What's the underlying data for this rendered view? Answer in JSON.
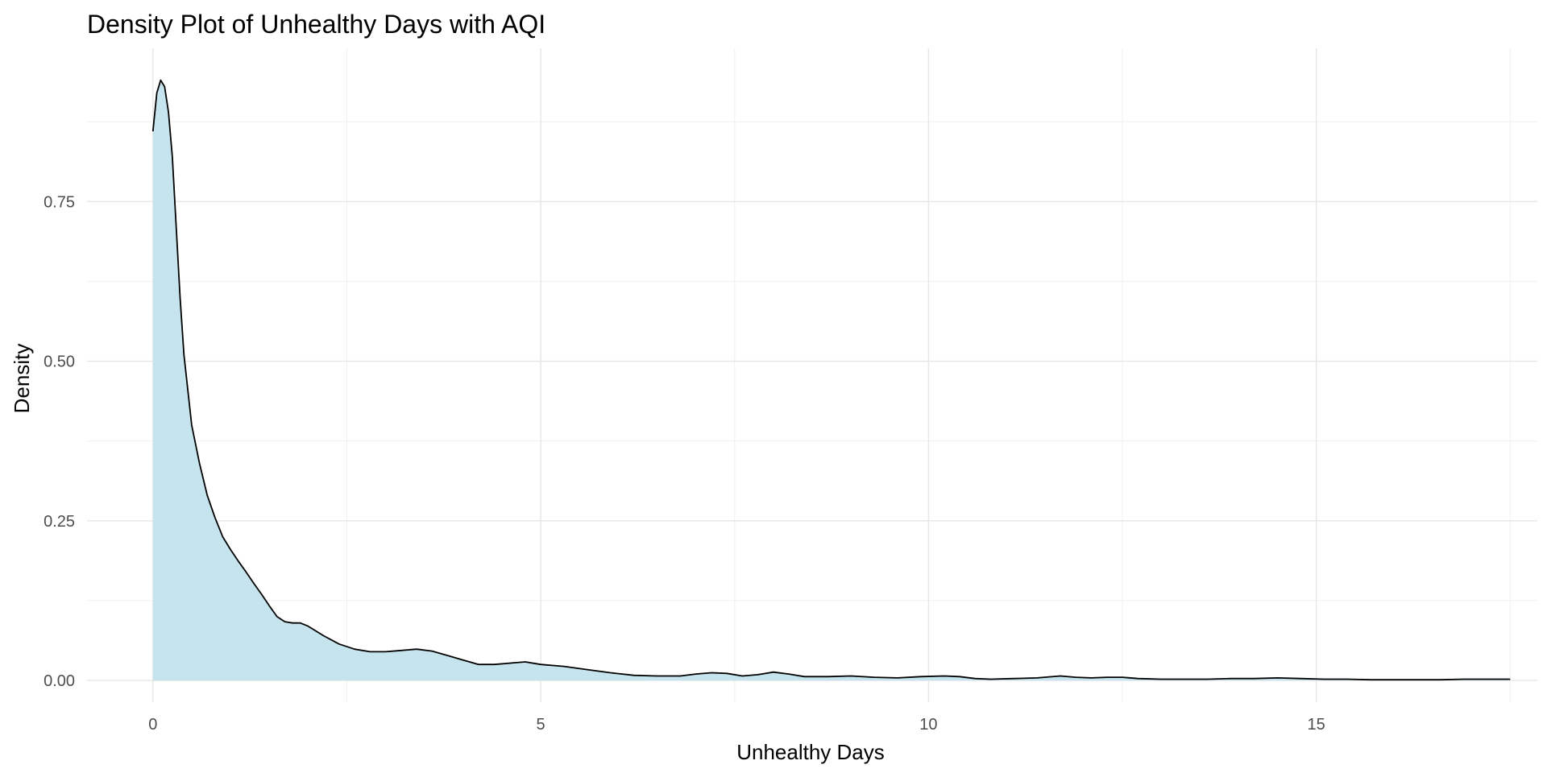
{
  "chart_data": {
    "type": "area",
    "title": "Density Plot of Unhealthy Days with AQI",
    "xlabel": "Unhealthy Days",
    "ylabel": "Density",
    "xlim": [
      -0.85,
      17.85
    ],
    "ylim": [
      -0.034,
      0.99
    ],
    "x_ticks": [
      0,
      5,
      10,
      15
    ],
    "x_tick_labels": [
      "0",
      "5",
      "10",
      "15"
    ],
    "x_minor_ticks": [
      2.5,
      7.5,
      12.5,
      17.5
    ],
    "y_ticks": [
      0,
      0.25,
      0.5,
      0.75
    ],
    "y_tick_labels": [
      "0.00",
      "0.25",
      "0.50",
      "0.75"
    ],
    "y_minor_ticks": [
      0.125,
      0.375,
      0.625,
      0.875
    ],
    "grid": true,
    "legend": "none",
    "fill_color": "#c6e4ed",
    "line_color": "#000000",
    "series": [
      {
        "x": [
          0,
          0.05,
          0.1,
          0.15,
          0.2,
          0.25,
          0.3,
          0.35,
          0.4,
          0.5,
          0.6,
          0.7,
          0.8,
          0.9,
          1.0,
          1.1,
          1.2,
          1.3,
          1.4,
          1.5,
          1.6,
          1.7,
          1.8,
          1.9,
          2.0,
          2.2,
          2.4,
          2.6,
          2.8,
          3.0,
          3.2,
          3.4,
          3.6,
          3.8,
          4.0,
          4.2,
          4.4,
          4.6,
          4.8,
          5.0,
          5.3,
          5.6,
          5.9,
          6.2,
          6.5,
          6.8,
          7.0,
          7.2,
          7.4,
          7.6,
          7.8,
          8.0,
          8.2,
          8.4,
          8.7,
          9.0,
          9.3,
          9.6,
          9.9,
          10.2,
          10.4,
          10.6,
          10.8,
          11.1,
          11.4,
          11.7,
          11.9,
          12.1,
          12.3,
          12.5,
          12.7,
          13.0,
          13.3,
          13.6,
          13.9,
          14.2,
          14.5,
          14.8,
          15.1,
          15.4,
          15.7,
          16.0,
          16.3,
          16.6,
          16.9,
          17.2,
          17.5
        ],
        "y": [
          0.86,
          0.92,
          0.94,
          0.93,
          0.89,
          0.82,
          0.71,
          0.6,
          0.51,
          0.4,
          0.34,
          0.29,
          0.255,
          0.225,
          0.205,
          0.187,
          0.17,
          0.152,
          0.135,
          0.117,
          0.1,
          0.092,
          0.09,
          0.09,
          0.085,
          0.07,
          0.057,
          0.049,
          0.045,
          0.045,
          0.047,
          0.049,
          0.046,
          0.039,
          0.032,
          0.025,
          0.025,
          0.027,
          0.029,
          0.025,
          0.022,
          0.017,
          0.012,
          0.008,
          0.007,
          0.007,
          0.01,
          0.012,
          0.011,
          0.007,
          0.009,
          0.013,
          0.01,
          0.006,
          0.006,
          0.007,
          0.005,
          0.004,
          0.006,
          0.007,
          0.006,
          0.003,
          0.002,
          0.003,
          0.004,
          0.007,
          0.005,
          0.004,
          0.005,
          0.005,
          0.003,
          0.002,
          0.002,
          0.002,
          0.003,
          0.003,
          0.004,
          0.003,
          0.002,
          0.002,
          0.001,
          0.001,
          0.001,
          0.001,
          0.002,
          0.002,
          0.002
        ]
      }
    ]
  }
}
